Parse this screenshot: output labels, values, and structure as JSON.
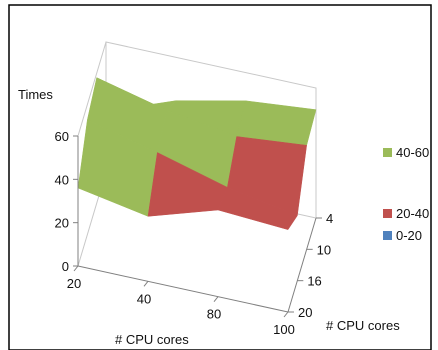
{
  "chart_data": {
    "type": "surface",
    "title": "",
    "zlabel": "Times",
    "xlabel": "# CPU cores",
    "ylabel": "# CPU cores",
    "x_categories": [
      "20",
      "40",
      "80",
      "100"
    ],
    "y_categories": [
      "4",
      "10",
      "16",
      "20"
    ],
    "zlim": [
      0,
      60
    ],
    "z_ticks": [
      "0",
      "20",
      "40",
      "60"
    ],
    "z_values": [
      [
        28,
        40,
        47,
        50
      ],
      [
        58,
        50,
        45,
        48
      ],
      [
        53,
        45,
        36,
        30
      ],
      [
        36,
        30,
        40,
        38
      ]
    ],
    "legend": [
      {
        "label": "40-60",
        "color": "#9bbb59"
      },
      {
        "label": "20-40",
        "color": "#c0504d"
      },
      {
        "label": "0-20",
        "color": "#4f81bd"
      }
    ],
    "legend_position": "right",
    "colors": {
      "band_40_60": "#9bbb59",
      "band_20_40": "#c0504d",
      "band_0_20": "#4f81bd",
      "axis": "#808080",
      "border": "#000000"
    }
  }
}
